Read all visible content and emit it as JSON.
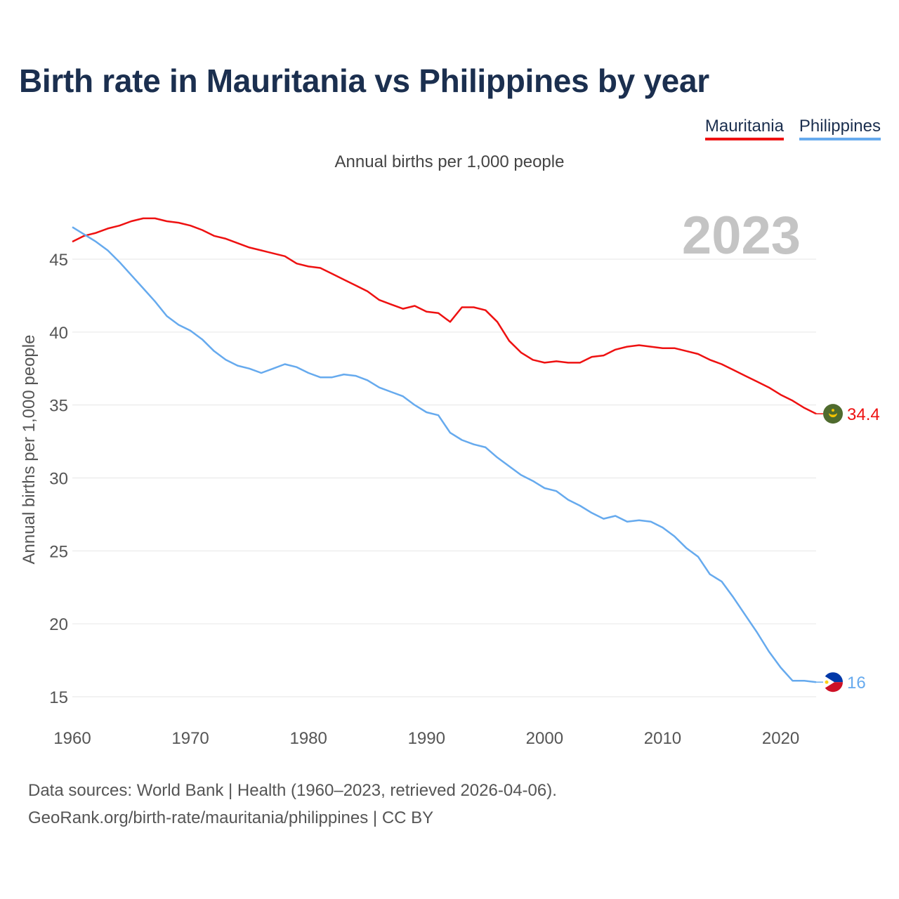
{
  "title": "Birth rate in Mauritania vs Philippines by year",
  "legend": [
    {
      "name": "Mauritania",
      "color": "#ee1111"
    },
    {
      "name": "Philippines",
      "color": "#66aaee"
    }
  ],
  "subtitle": "Annual births per 1,000 people",
  "year_label": "2023",
  "footer": {
    "line1": "Data sources: World Bank | Health (1960–2023, retrieved 2026-04-06).",
    "line2": "GeoRank.org/birth-rate/mauritania/philippines | CC BY"
  },
  "chart_data": {
    "type": "line",
    "title": "Birth rate in Mauritania vs Philippines by year",
    "xlabel": "",
    "ylabel": "Annual births per 1,000 people",
    "xlim": [
      1960,
      2023
    ],
    "ylim": [
      14,
      48
    ],
    "yticks": [
      15,
      20,
      25,
      30,
      35,
      40,
      45
    ],
    "xticks": [
      1960,
      1970,
      1980,
      1990,
      2000,
      2010,
      2020
    ],
    "grid": true,
    "x": [
      1960,
      1961,
      1962,
      1963,
      1964,
      1965,
      1966,
      1967,
      1968,
      1969,
      1970,
      1971,
      1972,
      1973,
      1974,
      1975,
      1976,
      1977,
      1978,
      1979,
      1980,
      1981,
      1982,
      1983,
      1984,
      1985,
      1986,
      1987,
      1988,
      1989,
      1990,
      1991,
      1992,
      1993,
      1994,
      1995,
      1996,
      1997,
      1998,
      1999,
      2000,
      2001,
      2002,
      2003,
      2004,
      2005,
      2006,
      2007,
      2008,
      2009,
      2010,
      2011,
      2012,
      2013,
      2014,
      2015,
      2016,
      2017,
      2018,
      2019,
      2020,
      2021,
      2022,
      2023
    ],
    "series": [
      {
        "name": "Mauritania",
        "color": "#ee1111",
        "end_label": "34.4",
        "values": [
          46.2,
          46.6,
          46.8,
          47.1,
          47.3,
          47.6,
          47.8,
          47.8,
          47.6,
          47.5,
          47.3,
          47.0,
          46.6,
          46.4,
          46.1,
          45.8,
          45.6,
          45.4,
          45.2,
          44.7,
          44.5,
          44.4,
          44.0,
          43.6,
          43.2,
          42.8,
          42.2,
          41.9,
          41.6,
          41.8,
          41.4,
          41.3,
          40.7,
          41.7,
          41.7,
          41.5,
          40.7,
          39.4,
          38.6,
          38.1,
          37.9,
          38.0,
          37.9,
          37.9,
          38.3,
          38.4,
          38.8,
          39.0,
          39.1,
          39.0,
          38.9,
          38.9,
          38.7,
          38.5,
          38.1,
          37.8,
          37.4,
          37.0,
          36.6,
          36.2,
          35.7,
          35.3,
          34.8,
          34.4
        ]
      },
      {
        "name": "Philippines",
        "color": "#66aaee",
        "end_label": "16",
        "values": [
          47.2,
          46.7,
          46.2,
          45.6,
          44.8,
          43.9,
          43.0,
          42.1,
          41.1,
          40.5,
          40.1,
          39.5,
          38.7,
          38.1,
          37.7,
          37.5,
          37.2,
          37.5,
          37.8,
          37.6,
          37.2,
          36.9,
          36.9,
          37.1,
          37.0,
          36.7,
          36.2,
          35.9,
          35.6,
          35.0,
          34.5,
          34.3,
          33.1,
          32.6,
          32.3,
          32.1,
          31.4,
          30.8,
          30.2,
          29.8,
          29.3,
          29.1,
          28.5,
          28.1,
          27.6,
          27.2,
          27.4,
          27.0,
          27.1,
          27.0,
          26.6,
          26.0,
          25.2,
          24.6,
          23.4,
          22.9,
          21.8,
          20.6,
          19.4,
          18.1,
          17.0,
          16.1,
          16.1,
          16.0
        ]
      }
    ]
  }
}
